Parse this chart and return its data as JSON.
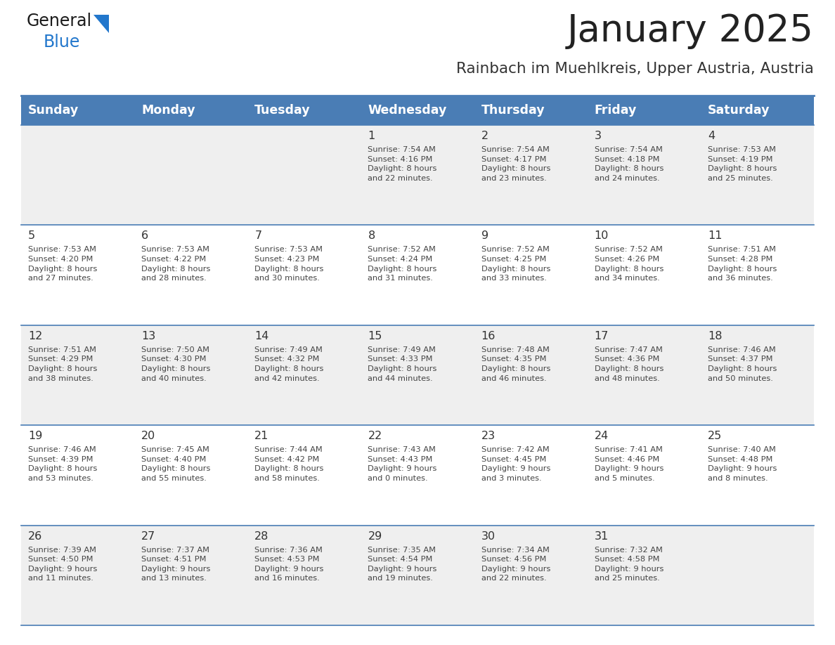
{
  "title": "January 2025",
  "subtitle": "Rainbach im Muehlkreis, Upper Austria, Austria",
  "days_of_week": [
    "Sunday",
    "Monday",
    "Tuesday",
    "Wednesday",
    "Thursday",
    "Friday",
    "Saturday"
  ],
  "header_bg": "#4a7db5",
  "header_text_color": "#ffffff",
  "row_bg_odd": "#efefef",
  "row_bg_even": "#ffffff",
  "cell_text_color": "#444444",
  "day_num_color": "#333333",
  "border_color": "#4a7db5",
  "title_color": "#222222",
  "subtitle_color": "#333333",
  "logo_general_color": "#1a1a1a",
  "logo_blue_color": "#2277cc",
  "weeks": [
    [
      {
        "day": "",
        "info": ""
      },
      {
        "day": "",
        "info": ""
      },
      {
        "day": "",
        "info": ""
      },
      {
        "day": "1",
        "info": "Sunrise: 7:54 AM\nSunset: 4:16 PM\nDaylight: 8 hours\nand 22 minutes."
      },
      {
        "day": "2",
        "info": "Sunrise: 7:54 AM\nSunset: 4:17 PM\nDaylight: 8 hours\nand 23 minutes."
      },
      {
        "day": "3",
        "info": "Sunrise: 7:54 AM\nSunset: 4:18 PM\nDaylight: 8 hours\nand 24 minutes."
      },
      {
        "day": "4",
        "info": "Sunrise: 7:53 AM\nSunset: 4:19 PM\nDaylight: 8 hours\nand 25 minutes."
      }
    ],
    [
      {
        "day": "5",
        "info": "Sunrise: 7:53 AM\nSunset: 4:20 PM\nDaylight: 8 hours\nand 27 minutes."
      },
      {
        "day": "6",
        "info": "Sunrise: 7:53 AM\nSunset: 4:22 PM\nDaylight: 8 hours\nand 28 minutes."
      },
      {
        "day": "7",
        "info": "Sunrise: 7:53 AM\nSunset: 4:23 PM\nDaylight: 8 hours\nand 30 minutes."
      },
      {
        "day": "8",
        "info": "Sunrise: 7:52 AM\nSunset: 4:24 PM\nDaylight: 8 hours\nand 31 minutes."
      },
      {
        "day": "9",
        "info": "Sunrise: 7:52 AM\nSunset: 4:25 PM\nDaylight: 8 hours\nand 33 minutes."
      },
      {
        "day": "10",
        "info": "Sunrise: 7:52 AM\nSunset: 4:26 PM\nDaylight: 8 hours\nand 34 minutes."
      },
      {
        "day": "11",
        "info": "Sunrise: 7:51 AM\nSunset: 4:28 PM\nDaylight: 8 hours\nand 36 minutes."
      }
    ],
    [
      {
        "day": "12",
        "info": "Sunrise: 7:51 AM\nSunset: 4:29 PM\nDaylight: 8 hours\nand 38 minutes."
      },
      {
        "day": "13",
        "info": "Sunrise: 7:50 AM\nSunset: 4:30 PM\nDaylight: 8 hours\nand 40 minutes."
      },
      {
        "day": "14",
        "info": "Sunrise: 7:49 AM\nSunset: 4:32 PM\nDaylight: 8 hours\nand 42 minutes."
      },
      {
        "day": "15",
        "info": "Sunrise: 7:49 AM\nSunset: 4:33 PM\nDaylight: 8 hours\nand 44 minutes."
      },
      {
        "day": "16",
        "info": "Sunrise: 7:48 AM\nSunset: 4:35 PM\nDaylight: 8 hours\nand 46 minutes."
      },
      {
        "day": "17",
        "info": "Sunrise: 7:47 AM\nSunset: 4:36 PM\nDaylight: 8 hours\nand 48 minutes."
      },
      {
        "day": "18",
        "info": "Sunrise: 7:46 AM\nSunset: 4:37 PM\nDaylight: 8 hours\nand 50 minutes."
      }
    ],
    [
      {
        "day": "19",
        "info": "Sunrise: 7:46 AM\nSunset: 4:39 PM\nDaylight: 8 hours\nand 53 minutes."
      },
      {
        "day": "20",
        "info": "Sunrise: 7:45 AM\nSunset: 4:40 PM\nDaylight: 8 hours\nand 55 minutes."
      },
      {
        "day": "21",
        "info": "Sunrise: 7:44 AM\nSunset: 4:42 PM\nDaylight: 8 hours\nand 58 minutes."
      },
      {
        "day": "22",
        "info": "Sunrise: 7:43 AM\nSunset: 4:43 PM\nDaylight: 9 hours\nand 0 minutes."
      },
      {
        "day": "23",
        "info": "Sunrise: 7:42 AM\nSunset: 4:45 PM\nDaylight: 9 hours\nand 3 minutes."
      },
      {
        "day": "24",
        "info": "Sunrise: 7:41 AM\nSunset: 4:46 PM\nDaylight: 9 hours\nand 5 minutes."
      },
      {
        "day": "25",
        "info": "Sunrise: 7:40 AM\nSunset: 4:48 PM\nDaylight: 9 hours\nand 8 minutes."
      }
    ],
    [
      {
        "day": "26",
        "info": "Sunrise: 7:39 AM\nSunset: 4:50 PM\nDaylight: 9 hours\nand 11 minutes."
      },
      {
        "day": "27",
        "info": "Sunrise: 7:37 AM\nSunset: 4:51 PM\nDaylight: 9 hours\nand 13 minutes."
      },
      {
        "day": "28",
        "info": "Sunrise: 7:36 AM\nSunset: 4:53 PM\nDaylight: 9 hours\nand 16 minutes."
      },
      {
        "day": "29",
        "info": "Sunrise: 7:35 AM\nSunset: 4:54 PM\nDaylight: 9 hours\nand 19 minutes."
      },
      {
        "day": "30",
        "info": "Sunrise: 7:34 AM\nSunset: 4:56 PM\nDaylight: 9 hours\nand 22 minutes."
      },
      {
        "day": "31",
        "info": "Sunrise: 7:32 AM\nSunset: 4:58 PM\nDaylight: 9 hours\nand 25 minutes."
      },
      {
        "day": "",
        "info": ""
      }
    ]
  ]
}
